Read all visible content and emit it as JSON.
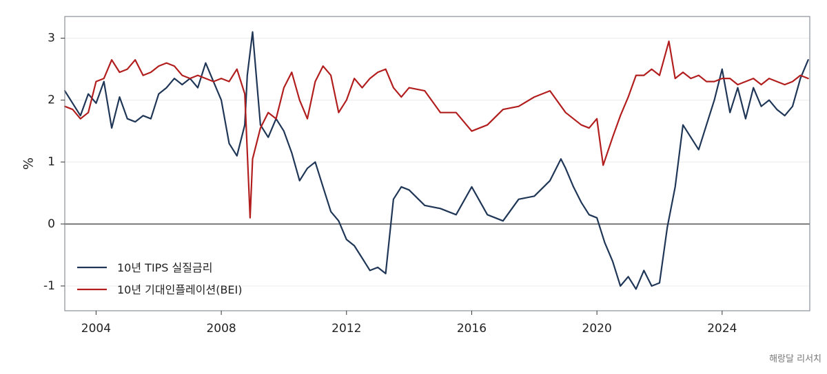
{
  "source": "해랑달 리서치",
  "chart_data": {
    "type": "line",
    "ylabel": "%",
    "xlabel": "",
    "xlim": [
      2003.0,
      2026.8
    ],
    "ylim": [
      -1.4,
      3.35
    ],
    "x_ticks": [
      2004,
      2008,
      2012,
      2016,
      2020,
      2024
    ],
    "x_tick_labels": [
      "2004",
      "2008",
      "2012",
      "2016",
      "2020",
      "2024"
    ],
    "y_ticks": [
      -1,
      0,
      1,
      2,
      3
    ],
    "y_tick_labels": [
      "-1",
      "0",
      "1",
      "2",
      "3"
    ],
    "grid": "horizontal",
    "zero_line": true,
    "legend": "bottom-left",
    "series": [
      {
        "name": "10년 TIPS 실질금리",
        "color": "#1f3657",
        "x": [
          2003.0,
          2003.5,
          2003.75,
          2004.0,
          2004.25,
          2004.5,
          2004.75,
          2005.0,
          2005.25,
          2005.5,
          2005.75,
          2006.0,
          2006.25,
          2006.5,
          2006.75,
          2007.0,
          2007.25,
          2007.5,
          2007.75,
          2008.0,
          2008.25,
          2008.5,
          2008.75,
          2008.83,
          2009.0,
          2009.25,
          2009.5,
          2009.75,
          2010.0,
          2010.25,
          2010.5,
          2010.75,
          2011.0,
          2011.25,
          2011.5,
          2011.75,
          2012.0,
          2012.25,
          2012.5,
          2012.75,
          2013.0,
          2013.25,
          2013.5,
          2013.75,
          2014.0,
          2014.5,
          2015.0,
          2015.5,
          2016.0,
          2016.5,
          2017.0,
          2017.5,
          2018.0,
          2018.5,
          2018.85,
          2019.0,
          2019.25,
          2019.5,
          2019.75,
          2020.0,
          2020.25,
          2020.5,
          2020.75,
          2021.0,
          2021.25,
          2021.5,
          2021.75,
          2022.0,
          2022.25,
          2022.5,
          2022.75,
          2023.0,
          2023.25,
          2023.5,
          2023.75,
          2024.0,
          2024.25,
          2024.5,
          2024.75,
          2025.0,
          2025.25,
          2025.5,
          2025.75,
          2026.0,
          2026.25,
          2026.5,
          2026.75
        ],
        "values": [
          2.15,
          1.75,
          2.1,
          1.95,
          2.3,
          1.55,
          2.05,
          1.7,
          1.65,
          1.75,
          1.7,
          2.1,
          2.2,
          2.35,
          2.25,
          2.35,
          2.2,
          2.6,
          2.3,
          2.0,
          1.3,
          1.1,
          1.6,
          2.4,
          3.1,
          1.6,
          1.4,
          1.7,
          1.5,
          1.15,
          0.7,
          0.9,
          1.0,
          0.6,
          0.2,
          0.05,
          -0.25,
          -0.35,
          -0.55,
          -0.75,
          -0.7,
          -0.8,
          0.4,
          0.6,
          0.55,
          0.3,
          0.25,
          0.15,
          0.6,
          0.15,
          0.05,
          0.4,
          0.45,
          0.7,
          1.05,
          0.9,
          0.6,
          0.35,
          0.15,
          0.1,
          -0.3,
          -0.6,
          -1.0,
          -0.85,
          -1.05,
          -0.75,
          -1.0,
          -0.95,
          -0.05,
          0.6,
          1.6,
          1.4,
          1.2,
          1.6,
          2.0,
          2.5,
          1.8,
          2.2,
          1.7,
          2.2,
          1.9,
          2.0,
          1.85,
          1.75,
          1.9,
          2.35,
          2.65
        ]
      },
      {
        "name": "10년 기대인플레이션(BEI)",
        "color": "#b21e1e",
        "x": [
          2003.0,
          2003.25,
          2003.5,
          2003.75,
          2004.0,
          2004.25,
          2004.5,
          2004.75,
          2005.0,
          2005.25,
          2005.5,
          2005.75,
          2006.0,
          2006.25,
          2006.5,
          2006.75,
          2007.0,
          2007.25,
          2007.5,
          2007.75,
          2008.0,
          2008.25,
          2008.5,
          2008.75,
          2008.92,
          2009.0,
          2009.25,
          2009.5,
          2009.75,
          2010.0,
          2010.25,
          2010.5,
          2010.75,
          2011.0,
          2011.25,
          2011.5,
          2011.75,
          2012.0,
          2012.25,
          2012.5,
          2012.75,
          2013.0,
          2013.25,
          2013.5,
          2013.75,
          2014.0,
          2014.5,
          2015.0,
          2015.5,
          2016.0,
          2016.5,
          2017.0,
          2017.5,
          2018.0,
          2018.5,
          2019.0,
          2019.5,
          2019.75,
          2020.0,
          2020.2,
          2020.5,
          2020.75,
          2021.0,
          2021.25,
          2021.5,
          2021.75,
          2022.0,
          2022.3,
          2022.5,
          2022.75,
          2023.0,
          2023.25,
          2023.5,
          2023.75,
          2024.0,
          2024.25,
          2024.5,
          2024.75,
          2025.0,
          2025.25,
          2025.5,
          2025.75,
          2026.0,
          2026.25,
          2026.5,
          2026.75
        ],
        "values": [
          1.9,
          1.85,
          1.7,
          1.8,
          2.3,
          2.35,
          2.65,
          2.45,
          2.5,
          2.65,
          2.4,
          2.45,
          2.55,
          2.6,
          2.55,
          2.4,
          2.35,
          2.4,
          2.35,
          2.3,
          2.35,
          2.3,
          2.5,
          2.1,
          0.1,
          1.05,
          1.55,
          1.8,
          1.7,
          2.2,
          2.45,
          2.0,
          1.7,
          2.3,
          2.55,
          2.4,
          1.8,
          2.0,
          2.35,
          2.2,
          2.35,
          2.45,
          2.5,
          2.2,
          2.05,
          2.2,
          2.15,
          1.8,
          1.8,
          1.5,
          1.6,
          1.85,
          1.9,
          2.05,
          2.15,
          1.8,
          1.6,
          1.55,
          1.7,
          0.95,
          1.4,
          1.75,
          2.05,
          2.4,
          2.4,
          2.5,
          2.4,
          2.95,
          2.35,
          2.45,
          2.35,
          2.4,
          2.3,
          2.3,
          2.35,
          2.35,
          2.25,
          2.3,
          2.35,
          2.25,
          2.35,
          2.3,
          2.25,
          2.3,
          2.4,
          2.35
        ]
      }
    ]
  }
}
